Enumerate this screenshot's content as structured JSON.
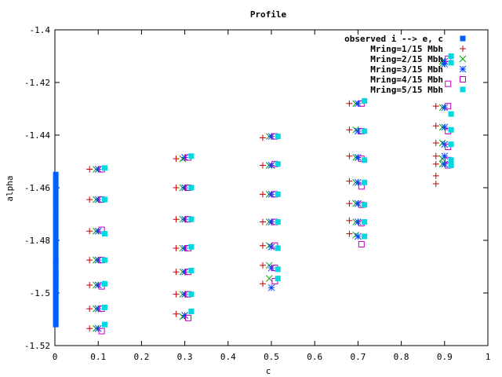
{
  "chart_data": {
    "type": "scatter",
    "title": "Profile",
    "xlabel": "c",
    "ylabel": "alpha",
    "xlim": [
      0,
      1
    ],
    "ylim": [
      -1.52,
      -1.4
    ],
    "x_ticks": [
      "0",
      "0.1",
      "0.2",
      "0.3",
      "0.4",
      "0.5",
      "0.6",
      "0.7",
      "0.8",
      "0.9",
      "1"
    ],
    "y_ticks": [
      "-1.4",
      "-1.42",
      "-1.44",
      "-1.46",
      "-1.48",
      "-1.5",
      "-1.52"
    ],
    "grid": false,
    "legend_position": "top-right",
    "series": [
      {
        "name": "observed i --> e, c",
        "marker": "filled-square",
        "color": "#0060ff",
        "x": [
          0.002,
          0.002,
          0.002,
          0.002,
          0.002,
          0.002,
          0.002,
          0.002,
          0.002,
          0.002,
          0.002,
          0.002,
          0.002,
          0.002,
          0.002,
          0.002,
          0.002,
          0.002,
          0.002,
          0.002,
          0.002,
          0.002,
          0.002,
          0.002,
          0.002,
          0.002,
          0.002,
          0.002,
          0.002,
          0.002,
          0.002,
          0.002,
          0.002,
          0.002,
          0.002,
          0.002,
          0.002,
          0.002,
          0.002,
          0.002,
          0.002,
          0.002
        ],
        "y": [
          -1.455,
          -1.457,
          -1.459,
          -1.461,
          -1.463,
          -1.465,
          -1.467,
          -1.469,
          -1.471,
          -1.473,
          -1.475,
          -1.477,
          -1.479,
          -1.481,
          -1.483,
          -1.485,
          -1.487,
          -1.489,
          -1.491,
          -1.492,
          -1.493,
          -1.494,
          -1.495,
          -1.496,
          -1.497,
          -1.498,
          -1.499,
          -1.5,
          -1.501,
          -1.502,
          -1.503,
          -1.504,
          -1.505,
          -1.506,
          -1.507,
          -1.508,
          -1.509,
          -1.51,
          -1.511,
          -1.512,
          -1.4885,
          -1.4935
        ]
      },
      {
        "name": "Mring=1/15 Mbh",
        "marker": "plus",
        "color": "#c00000",
        "x": [
          0.08,
          0.08,
          0.08,
          0.08,
          0.08,
          0.08,
          0.08,
          0.28,
          0.28,
          0.28,
          0.28,
          0.28,
          0.28,
          0.28,
          0.48,
          0.48,
          0.48,
          0.48,
          0.48,
          0.48,
          0.48,
          0.68,
          0.68,
          0.68,
          0.68,
          0.68,
          0.68,
          0.68,
          0.88,
          0.88,
          0.88,
          0.88,
          0.88,
          0.88,
          0.88
        ],
        "y": [
          -1.453,
          -1.4645,
          -1.4765,
          -1.4875,
          -1.497,
          -1.506,
          -1.5135,
          -1.449,
          -1.46,
          -1.472,
          -1.483,
          -1.492,
          -1.5005,
          -1.508,
          -1.441,
          -1.4515,
          -1.4625,
          -1.473,
          -1.482,
          -1.4895,
          -1.4965,
          -1.428,
          -1.438,
          -1.448,
          -1.4575,
          -1.466,
          -1.4725,
          -1.4775,
          -1.429,
          -1.4365,
          -1.443,
          -1.448,
          -1.451,
          -1.4555,
          -1.4585
        ]
      },
      {
        "name": "Mring=2/15 Mbh",
        "marker": "cross",
        "color": "#00a000",
        "x": [
          0.095,
          0.095,
          0.095,
          0.095,
          0.095,
          0.095,
          0.095,
          0.295,
          0.295,
          0.295,
          0.295,
          0.295,
          0.295,
          0.295,
          0.495,
          0.495,
          0.495,
          0.495,
          0.495,
          0.495,
          0.495,
          0.695,
          0.695,
          0.695,
          0.695,
          0.695,
          0.695,
          0.695,
          0.895,
          0.895,
          0.895,
          0.895,
          0.895,
          0.895,
          0.895
        ],
        "y": [
          -1.453,
          -1.4645,
          -1.4765,
          -1.4875,
          -1.497,
          -1.506,
          -1.5135,
          -1.449,
          -1.46,
          -1.472,
          -1.483,
          -1.492,
          -1.5005,
          -1.509,
          -1.4405,
          -1.4515,
          -1.4625,
          -1.473,
          -1.482,
          -1.4895,
          -1.4945,
          -1.428,
          -1.438,
          -1.4485,
          -1.458,
          -1.466,
          -1.473,
          -1.478,
          -1.4295,
          -1.437,
          -1.443,
          -1.449,
          -1.451,
          -1.412,
          -1.413
        ]
      },
      {
        "name": "Mring=3/15 Mbh",
        "marker": "star",
        "color": "#0040ff",
        "x": [
          0.1,
          0.1,
          0.1,
          0.1,
          0.1,
          0.1,
          0.1,
          0.3,
          0.3,
          0.3,
          0.3,
          0.3,
          0.3,
          0.3,
          0.5,
          0.5,
          0.5,
          0.5,
          0.5,
          0.5,
          0.5,
          0.7,
          0.7,
          0.7,
          0.7,
          0.7,
          0.7,
          0.7,
          0.9,
          0.9,
          0.9,
          0.9,
          0.9,
          0.9,
          0.9
        ],
        "y": [
          -1.453,
          -1.4645,
          -1.4765,
          -1.4875,
          -1.497,
          -1.506,
          -1.5135,
          -1.4485,
          -1.46,
          -1.472,
          -1.483,
          -1.492,
          -1.5005,
          -1.5085,
          -1.4405,
          -1.4515,
          -1.4625,
          -1.473,
          -1.4825,
          -1.4905,
          -1.498,
          -1.428,
          -1.4385,
          -1.4485,
          -1.458,
          -1.466,
          -1.473,
          -1.4785,
          -1.4295,
          -1.437,
          -1.4435,
          -1.448,
          -1.451,
          -1.412,
          -1.413
        ]
      },
      {
        "name": "Mring=4/15 Mbh",
        "marker": "open-square",
        "color": "#c000c0",
        "x": [
          0.108,
          0.108,
          0.108,
          0.108,
          0.108,
          0.108,
          0.108,
          0.308,
          0.308,
          0.308,
          0.308,
          0.308,
          0.308,
          0.308,
          0.508,
          0.508,
          0.508,
          0.508,
          0.508,
          0.508,
          0.508,
          0.708,
          0.708,
          0.708,
          0.708,
          0.708,
          0.708,
          0.708,
          0.908,
          0.908,
          0.908,
          0.908,
          0.908,
          0.908,
          0.908
        ],
        "y": [
          -1.453,
          -1.4645,
          -1.476,
          -1.4875,
          -1.4975,
          -1.506,
          -1.5145,
          -1.4485,
          -1.46,
          -1.472,
          -1.483,
          -1.492,
          -1.5005,
          -1.5095,
          -1.4405,
          -1.451,
          -1.4625,
          -1.473,
          -1.482,
          -1.4905,
          -1.4955,
          -1.428,
          -1.4385,
          -1.449,
          -1.4595,
          -1.4665,
          -1.4735,
          -1.4815,
          -1.429,
          -1.4385,
          -1.4445,
          -1.4495,
          -1.4515,
          -1.4205,
          -1.411
        ]
      },
      {
        "name": "Mring=5/15 Mbh",
        "marker": "filled-square",
        "color": "#00d8e0",
        "x": [
          0.115,
          0.115,
          0.115,
          0.115,
          0.115,
          0.115,
          0.115,
          0.315,
          0.315,
          0.315,
          0.315,
          0.315,
          0.315,
          0.315,
          0.515,
          0.515,
          0.515,
          0.515,
          0.515,
          0.515,
          0.515,
          0.715,
          0.715,
          0.715,
          0.715,
          0.715,
          0.715,
          0.715,
          0.915,
          0.915,
          0.915,
          0.915,
          0.915,
          0.915,
          0.915
        ],
        "y": [
          -1.4525,
          -1.4645,
          -1.4775,
          -1.4875,
          -1.4965,
          -1.5055,
          -1.512,
          -1.448,
          -1.46,
          -1.472,
          -1.4825,
          -1.4915,
          -1.5005,
          -1.507,
          -1.4405,
          -1.451,
          -1.4625,
          -1.473,
          -1.483,
          -1.491,
          -1.4945,
          -1.427,
          -1.4385,
          -1.4495,
          -1.458,
          -1.4665,
          -1.473,
          -1.4785,
          -1.432,
          -1.438,
          -1.4435,
          -1.4495,
          -1.4515,
          -1.41,
          -1.4125
        ]
      }
    ]
  }
}
